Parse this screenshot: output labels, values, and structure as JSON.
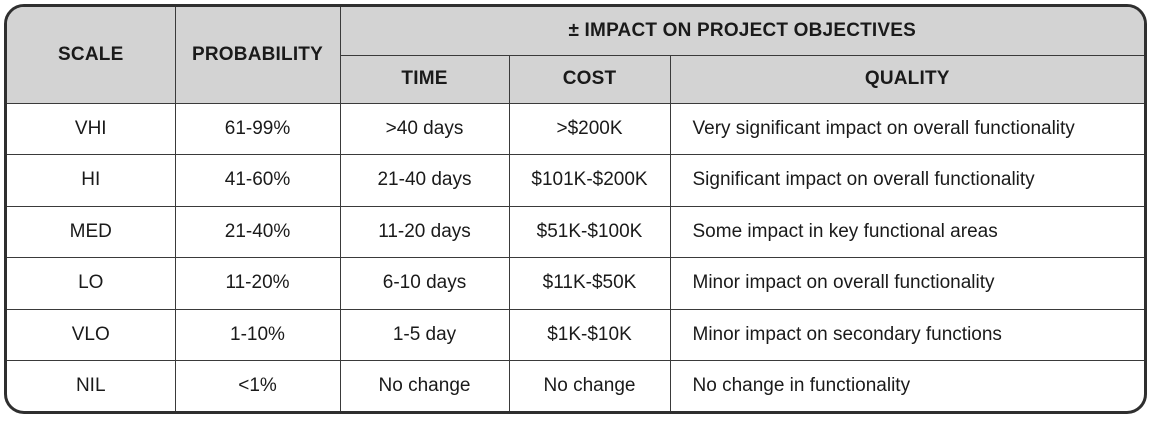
{
  "headers": {
    "scale": "SCALE",
    "probability": "PROBABILITY",
    "impact_group": "± IMPACT ON PROJECT OBJECTIVES",
    "time": "TIME",
    "cost": "COST",
    "quality": "QUALITY"
  },
  "rows": [
    {
      "scale": "VHI",
      "probability": "61-99%",
      "time": ">40 days",
      "cost": ">$200K",
      "quality": "Very significant impact on overall functionality"
    },
    {
      "scale": "HI",
      "probability": "41-60%",
      "time": "21-40 days",
      "cost": "$101K-$200K",
      "quality": "Significant impact on overall functionality"
    },
    {
      "scale": "MED",
      "probability": "21-40%",
      "time": "11-20 days",
      "cost": "$51K-$100K",
      "quality": "Some impact in key functional areas"
    },
    {
      "scale": "LO",
      "probability": "11-20%",
      "time": "6-10 days",
      "cost": "$11K-$50K",
      "quality": "Minor impact on overall functionality"
    },
    {
      "scale": "VLO",
      "probability": "1-10%",
      "time": "1-5 day",
      "cost": "$1K-$10K",
      "quality": "Minor impact on secondary functions"
    },
    {
      "scale": "NIL",
      "probability": "<1%",
      "time": "No change",
      "cost": "No change",
      "quality": "No change in functionality"
    }
  ],
  "colors": {
    "header_bg": "#d3d3d3",
    "border": "#2f2f2f"
  }
}
